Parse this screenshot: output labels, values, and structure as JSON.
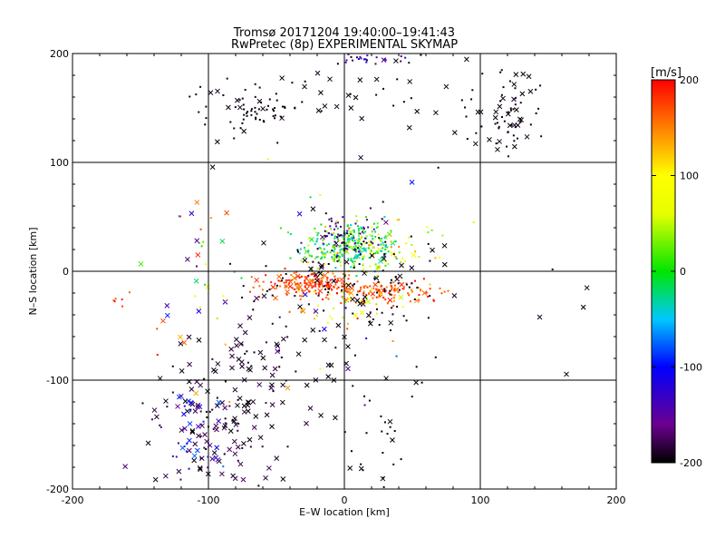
{
  "chart_data": {
    "type": "scatter",
    "title": "Tromsø 20171204  19:40:00–19:41:43",
    "subtitle": "RwPretec (8p) EXPERIMENTAL SKYMAP",
    "xlabel": "E–W location [km]",
    "ylabel": "N–S location [km]",
    "xlim": [
      -200,
      200
    ],
    "ylim": [
      -200,
      200
    ],
    "xticks": [
      -200,
      -100,
      0,
      100,
      200
    ],
    "yticks": [
      -200,
      -100,
      0,
      100,
      200
    ],
    "grid": true,
    "marker_types": [
      "dot",
      "cross"
    ],
    "colorbar": {
      "label": "[m/s]",
      "min": -200,
      "max": 200,
      "ticks": [
        -200,
        -100,
        0,
        100,
        200
      ],
      "stops": [
        {
          "v": -200,
          "color": "#000000"
        },
        {
          "v": -160,
          "color": "#6b008f"
        },
        {
          "v": -100,
          "color": "#0000ff"
        },
        {
          "v": -50,
          "color": "#00c8ff"
        },
        {
          "v": 0,
          "color": "#00e600"
        },
        {
          "v": 60,
          "color": "#e6ff00"
        },
        {
          "v": 100,
          "color": "#ffff00"
        },
        {
          "v": 140,
          "color": "#ff9900"
        },
        {
          "v": 200,
          "color": "#ff0000"
        }
      ]
    },
    "clusters": [
      {
        "cx": 5,
        "cy": 22,
        "sx": 18,
        "sy": 12,
        "vmin": -60,
        "vmax": 60,
        "n": 260,
        "cross": 0.04
      },
      {
        "cx": 0,
        "cy": 30,
        "sx": 14,
        "sy": 10,
        "vmin": -200,
        "vmax": -130,
        "n": 70,
        "cross": 0.05
      },
      {
        "cx": 20,
        "cy": 25,
        "sx": 25,
        "sy": 15,
        "vmin": 20,
        "vmax": 160,
        "n": 70,
        "cross": 0.08
      },
      {
        "cx": -25,
        "cy": -12,
        "sx": 18,
        "sy": 6,
        "vmin": 150,
        "vmax": 200,
        "n": 150,
        "cross": 0.1
      },
      {
        "cx": 30,
        "cy": -18,
        "sx": 25,
        "sy": 5,
        "vmin": 140,
        "vmax": 200,
        "n": 110,
        "cross": 0.1
      },
      {
        "cx": 5,
        "cy": -30,
        "sx": 28,
        "sy": 14,
        "vmin": 40,
        "vmax": 200,
        "n": 60,
        "cross": 0.2
      },
      {
        "cx": 5,
        "cy": -15,
        "sx": 35,
        "sy": 25,
        "vmin": -200,
        "vmax": -185,
        "n": 110,
        "cross": 0.4
      },
      {
        "cx": -65,
        "cy": 150,
        "sx": 20,
        "sy": 12,
        "vmin": -200,
        "vmax": -190,
        "n": 70,
        "cross": 0.25
      },
      {
        "cx": 120,
        "cy": 145,
        "sx": 15,
        "sy": 20,
        "vmin": -200,
        "vmax": -190,
        "n": 70,
        "cross": 0.3
      },
      {
        "cx": 25,
        "cy": 165,
        "sx": 40,
        "sy": 25,
        "vmin": -200,
        "vmax": -190,
        "n": 40,
        "cross": 0.5
      },
      {
        "cx": 25,
        "cy": 195,
        "sx": 15,
        "sy": 3,
        "vmin": -200,
        "vmax": -90,
        "n": 25,
        "cross": 0.1
      },
      {
        "cx": -95,
        "cy": -140,
        "sx": 25,
        "sy": 30,
        "vmin": -200,
        "vmax": -170,
        "n": 120,
        "cross": 0.6
      },
      {
        "cx": -110,
        "cy": -150,
        "sx": 12,
        "sy": 20,
        "vmin": -170,
        "vmax": -70,
        "n": 35,
        "cross": 0.6
      },
      {
        "cx": -60,
        "cy": -90,
        "sx": 30,
        "sy": 25,
        "vmin": -200,
        "vmax": -180,
        "n": 60,
        "cross": 0.65
      },
      {
        "cx": 25,
        "cy": -160,
        "sx": 12,
        "sy": 25,
        "vmin": -200,
        "vmax": -190,
        "n": 25,
        "cross": 0.4
      },
      {
        "cx": -60,
        "cy": -5,
        "sx": 60,
        "sy": 60,
        "vmin": -200,
        "vmax": 200,
        "n": 40,
        "cross": 0.5
      },
      {
        "cx": 40,
        "cy": -40,
        "sx": 70,
        "sy": 80,
        "vmin": -200,
        "vmax": -190,
        "n": 30,
        "cross": 0.5
      },
      {
        "cx": -160,
        "cy": -25,
        "sx": 8,
        "sy": 5,
        "vmin": 160,
        "vmax": 200,
        "n": 6,
        "cross": 0
      },
      {
        "cx": -105,
        "cy": 20,
        "sx": 15,
        "sy": 40,
        "vmin": -200,
        "vmax": 200,
        "n": 25,
        "cross": 0.5
      }
    ]
  }
}
